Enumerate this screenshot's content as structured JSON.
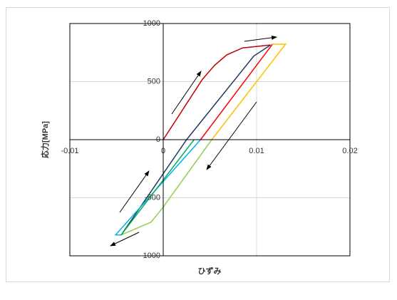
{
  "chart_data": {
    "type": "line",
    "xlabel": "ひずみ",
    "ylabel": "応力[MPa]",
    "xlim": [
      -0.01,
      0.02
    ],
    "xticks": [
      -0.01,
      0,
      0.01,
      0.02
    ],
    "ylim": [
      -1000,
      1000
    ],
    "yticks": [
      -1000,
      -500,
      0,
      500,
      1000
    ],
    "grid": true,
    "series": [
      {
        "color": "#c00000",
        "x": [
          0,
          0.0042,
          0.0055,
          0.0068,
          0.0085,
          0.0115
        ],
        "values": [
          0,
          520,
          640,
          730,
          790,
          815
        ]
      },
      {
        "color": "#203864",
        "x": [
          0.0115,
          0.0097,
          0.0025,
          -0.0045
        ],
        "values": [
          815,
          720,
          0,
          -820
        ]
      },
      {
        "color": "#00b0f0",
        "x": [
          -0.0045,
          -0.0051,
          0.004
        ],
        "values": [
          -820,
          -820,
          0
        ]
      },
      {
        "color": "#ff0000",
        "x": [
          0.004,
          0.0117
        ],
        "values": [
          0,
          822
        ]
      },
      {
        "color": "#ffc000",
        "x": [
          0.0117,
          0.0131,
          0.0052
        ],
        "values": [
          822,
          822,
          0
        ]
      },
      {
        "color": "#92d050",
        "x": [
          0.0052,
          0,
          -0.0013,
          -0.0045
        ],
        "values": [
          0,
          -580,
          -710,
          -820
        ]
      },
      {
        "color": "#00b050",
        "x": [
          -0.0045,
          0.0033
        ],
        "values": [
          -820,
          0
        ]
      }
    ]
  }
}
